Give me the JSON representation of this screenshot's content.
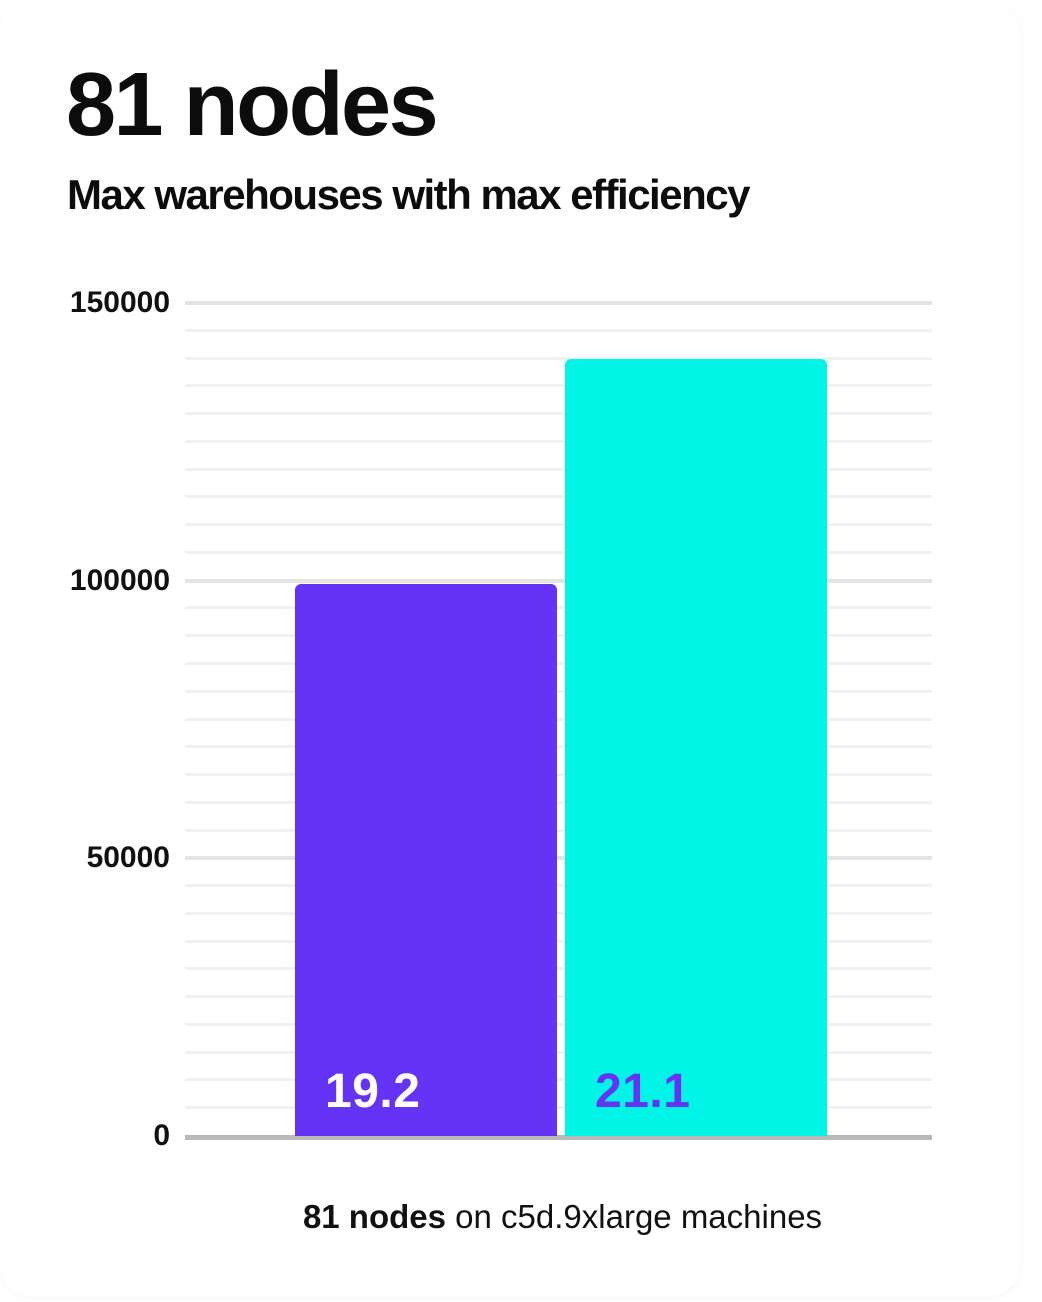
{
  "card": {
    "title": "81 nodes",
    "subtitle": "Max warehouses with max efficiency"
  },
  "colors": {
    "purple": "#6533F5",
    "cyan": "#00F5E6",
    "grid_minor": "#f1f1f1",
    "grid_major": "#e3e3e3",
    "axis": "#b9b9b9",
    "text": "#0c0c0c"
  },
  "chart_data": {
    "type": "bar",
    "title": "81 nodes",
    "subtitle": "Max warehouses with max efficiency",
    "categories": [
      "19.2",
      "21.1"
    ],
    "series": [
      {
        "name": "Max warehouses",
        "values": [
          99400,
          139900
        ]
      }
    ],
    "bar_labels": [
      "19.2",
      "21.1"
    ],
    "bar_colors": [
      "#6533F5",
      "#00F5E6"
    ],
    "bar_label_colors": [
      "#ffffff",
      "#6533F5"
    ],
    "ylim": [
      0,
      150000
    ],
    "ytick_step_minor": 5000,
    "yticks": [
      0,
      50000,
      100000,
      150000
    ],
    "ytick_labels": [
      "0",
      "50000",
      "100000",
      "150000"
    ],
    "grid": true,
    "legend": false,
    "caption": {
      "bold": "81 nodes",
      "regular": " on c5d.9xlarge machines"
    }
  }
}
